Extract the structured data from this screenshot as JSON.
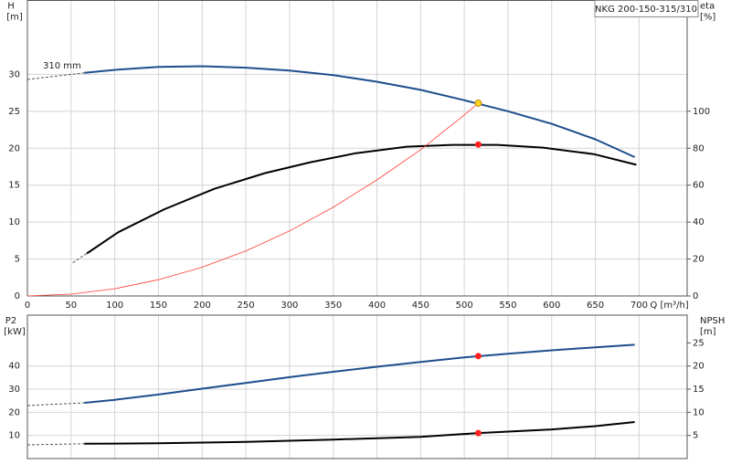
{
  "chart_data": [
    {
      "type": "line",
      "title": "NKG 200-150-315/310",
      "annotation": "310 mm",
      "xlabel": "Q [m³/h]",
      "ylabel": "H",
      "yunit": "[m]",
      "y2label": "eta",
      "y2unit": "[%]",
      "xlim": [
        0,
        755
      ],
      "ylim": [
        0,
        40
      ],
      "y2lim": [
        0,
        160
      ],
      "xticks": [
        0,
        50,
        100,
        150,
        200,
        250,
        300,
        350,
        400,
        450,
        500,
        550,
        600,
        650,
        700
      ],
      "yticks": [
        0,
        5,
        10,
        15,
        20,
        25,
        30
      ],
      "y2ticks": [
        0,
        20,
        40,
        60,
        80,
        100
      ],
      "grid": true,
      "show_xtick_labels": true,
      "series": [
        {
          "color": "#555555",
          "dashed": true,
          "x": [
            0,
            65
          ],
          "values": [
            29.3,
            30.2
          ]
        },
        {
          "color": "#1f4e8c",
          "x": [
            65,
            100,
            150,
            200,
            250,
            300,
            350,
            400,
            450,
            500,
            550,
            600,
            650,
            695
          ],
          "values": [
            30.2,
            30.6,
            31.0,
            31.1,
            30.9,
            30.5,
            29.9,
            29.0,
            27.9,
            26.5,
            25.0,
            23.3,
            21.2,
            18.8
          ]
        },
        {
          "color": "#555555",
          "dashed": true,
          "axis": "y2",
          "x": [
            52,
            68
          ],
          "values": [
            18,
            23
          ]
        },
        {
          "color": "#000000",
          "axis": "y2",
          "x": [
            68,
            104,
            157,
            214,
            272,
            324,
            376,
            434,
            486,
            538,
            590,
            648,
            697
          ],
          "values": [
            23,
            34.5,
            47,
            58,
            66.5,
            72.4,
            77.3,
            80.8,
            81.8,
            81.8,
            80.3,
            76.8,
            71
          ]
        },
        {
          "color": "#ff3b30",
          "thin": true,
          "x": [
            0,
            50,
            100,
            150,
            200,
            250,
            300,
            350,
            400,
            450,
            500,
            516
          ],
          "values": [
            0,
            0.25,
            0.98,
            2.2,
            3.9,
            6.1,
            8.8,
            12.0,
            15.7,
            19.8,
            24.5,
            26.1
          ]
        }
      ],
      "points": [
        {
          "x": 516,
          "value": 26.1,
          "color": "#ffd21f"
        },
        {
          "x": 516,
          "value": 82,
          "color": "#ff2020",
          "axis": "y2"
        }
      ]
    },
    {
      "type": "line",
      "ylabel": "P2",
      "yunit": "[kW]",
      "y2label": "NPSH",
      "y2unit": "[m]",
      "xlim": [
        0,
        755
      ],
      "ylim": [
        0,
        62
      ],
      "y2lim": [
        0,
        31
      ],
      "xticks": [
        0,
        50,
        100,
        150,
        200,
        250,
        300,
        350,
        400,
        450,
        500,
        550,
        600,
        650,
        700
      ],
      "yticks": [
        10,
        20,
        30,
        40
      ],
      "y2ticks": [
        5,
        10,
        15,
        20,
        25
      ],
      "grid": true,
      "show_xtick_labels": false,
      "series": [
        {
          "color": "#555555",
          "dashed": true,
          "x": [
            0,
            65
          ],
          "values": [
            22.9,
            24.1
          ]
        },
        {
          "color": "#1f4e8c",
          "x": [
            65,
            100,
            150,
            200,
            250,
            300,
            350,
            400,
            450,
            500,
            550,
            600,
            650,
            695
          ],
          "values": [
            24.1,
            25.4,
            27.7,
            30.2,
            32.7,
            35.2,
            37.5,
            39.7,
            41.8,
            43.7,
            45.3,
            46.8,
            48.1,
            49.2
          ]
        },
        {
          "color": "#555555",
          "dashed": true,
          "axis": "y2",
          "x": [
            0,
            65
          ],
          "values": [
            2.96,
            3.2
          ]
        },
        {
          "color": "#000000",
          "axis": "y2",
          "x": [
            65,
            150,
            250,
            350,
            450,
            516,
            600,
            650,
            695
          ],
          "values": [
            3.2,
            3.3,
            3.6,
            4.1,
            4.7,
            5.5,
            6.3,
            7.0,
            7.9
          ]
        }
      ],
      "points": [
        {
          "x": 516,
          "value": 44.3,
          "color": "#ff2020"
        },
        {
          "x": 516,
          "value": 5.5,
          "color": "#ff2020",
          "axis": "y2"
        }
      ]
    }
  ]
}
